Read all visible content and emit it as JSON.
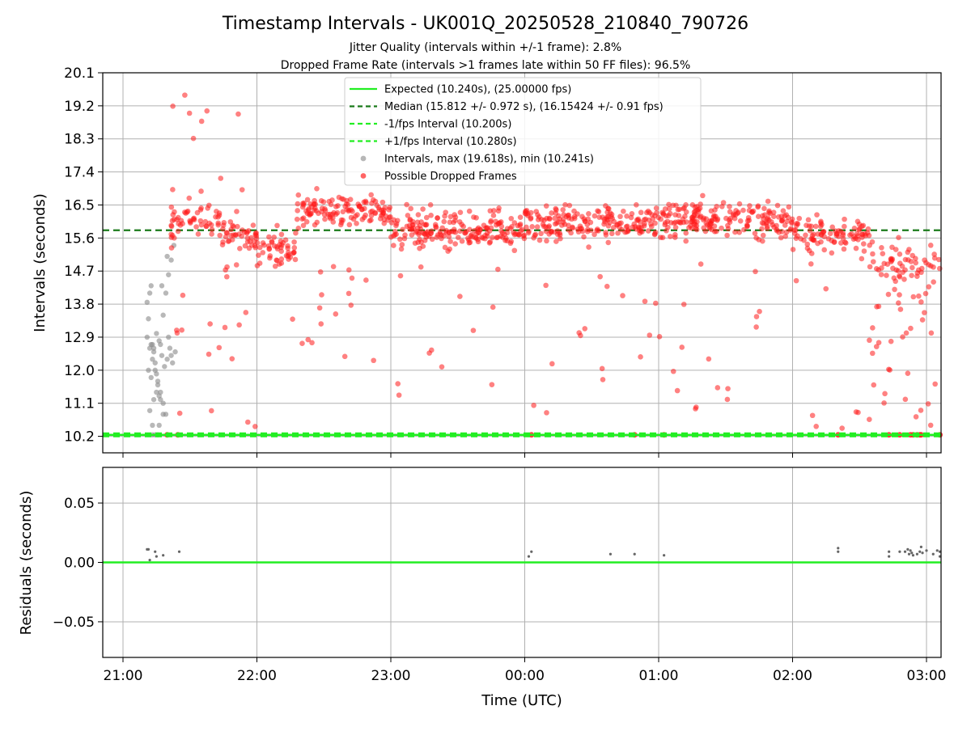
{
  "chart_data": {
    "type": "scatter",
    "title": "Timestamp Intervals - UK001Q_20250528_210840_790726",
    "subtitles": [
      "Jitter Quality (intervals within +/-1 frame): 2.8%",
      "Dropped Frame Rate (intervals >1 frames late within 50 FF files): 96.5%"
    ],
    "xlabel": "Time (UTC)",
    "x_ticks": [
      "21:00",
      "22:00",
      "23:00",
      "00:00",
      "01:00",
      "02:00",
      "03:00"
    ],
    "top_panel": {
      "ylabel": "Intervals (seconds)",
      "y_ticks": [
        "10.2",
        "11.1",
        "12.0",
        "12.9",
        "13.8",
        "14.7",
        "15.6",
        "16.5",
        "17.4",
        "18.3",
        "19.2",
        "20.1"
      ],
      "ylim": [
        9.75,
        20.1
      ],
      "grid": true,
      "legend_placement": "top-center",
      "legend": [
        {
          "label": "Expected (10.240s), (25.00000 fps)",
          "style": "solid",
          "color": "#22ee22"
        },
        {
          "label": "Median (15.812 +/- 0.972 s), (16.15424 +/- 0.91 fps)",
          "style": "dashed",
          "color": "#1a7a1a"
        },
        {
          "label": "-1/fps Interval (10.200s)",
          "style": "dashed",
          "color": "#22ee22"
        },
        {
          "label": "+1/fps Interval (10.280s)",
          "style": "dashed",
          "color": "#22ee22"
        },
        {
          "label": "Intervals, max (19.618s), min (10.241s)",
          "style": "marker",
          "color": "#999999"
        },
        {
          "label": "Possible Dropped Frames",
          "style": "marker",
          "color": "#ff2222"
        }
      ],
      "reference_lines": {
        "expected": 10.24,
        "median": 15.812,
        "minus_fps": 10.2,
        "plus_fps": 10.28
      },
      "gray_points": [
        [
          21.18,
          13.85
        ],
        [
          21.19,
          13.4
        ],
        [
          21.2,
          14.1
        ],
        [
          21.21,
          14.3
        ],
        [
          21.22,
          12.7
        ],
        [
          21.23,
          12.5
        ],
        [
          21.24,
          12.2
        ],
        [
          21.25,
          11.9
        ],
        [
          21.26,
          11.6
        ],
        [
          21.27,
          11.3
        ],
        [
          21.18,
          12.9
        ],
        [
          21.2,
          12.6
        ],
        [
          21.22,
          12.3
        ],
        [
          21.24,
          12.0
        ],
        [
          21.26,
          11.7
        ],
        [
          21.28,
          11.4
        ],
        [
          21.3,
          11.1
        ],
        [
          21.32,
          10.8
        ],
        [
          21.19,
          12.0
        ],
        [
          21.21,
          11.8
        ],
        [
          21.23,
          12.6
        ],
        [
          21.25,
          13.0
        ],
        [
          21.27,
          12.8
        ],
        [
          21.29,
          12.4
        ],
        [
          21.31,
          12.1
        ],
        [
          21.33,
          12.3
        ],
        [
          21.35,
          12.6
        ],
        [
          21.37,
          12.2
        ],
        [
          21.39,
          12.5
        ],
        [
          21.2,
          10.9
        ],
        [
          21.22,
          10.5
        ],
        [
          21.24,
          10.24
        ],
        [
          21.26,
          10.24
        ],
        [
          21.28,
          11.2
        ],
        [
          21.3,
          10.8
        ],
        [
          21.32,
          14.1
        ],
        [
          21.34,
          14.6
        ],
        [
          21.36,
          15.0
        ],
        [
          21.38,
          15.4
        ],
        [
          21.3,
          13.5
        ],
        [
          21.28,
          12.7
        ],
        [
          21.25,
          11.4
        ],
        [
          21.22,
          10.24
        ],
        [
          21.34,
          12.9
        ],
        [
          21.36,
          12.4
        ],
        [
          21.23,
          11.2
        ],
        [
          21.21,
          12.7
        ],
        [
          21.27,
          10.5
        ],
        [
          21.29,
          14.3
        ],
        [
          21.33,
          15.1
        ]
      ],
      "red_scatter_seed": 7,
      "red_points_sample_note_exclude": true
    },
    "bottom_panel": {
      "ylabel": "Residuals (seconds)",
      "y_ticks": [
        "−0.05",
        "0.00",
        "0.05"
      ],
      "ylim": [
        -0.08,
        0.08
      ],
      "zero_line_color": "#22ee22",
      "points": [
        [
          21.18,
          0.011
        ],
        [
          21.19,
          0.011
        ],
        [
          21.2,
          0.002
        ],
        [
          21.24,
          0.009
        ],
        [
          21.25,
          0.005
        ],
        [
          21.3,
          0.006
        ],
        [
          21.42,
          0.009
        ],
        [
          0.03,
          0.005
        ],
        [
          0.05,
          0.009
        ],
        [
          0.64,
          0.007
        ],
        [
          0.82,
          0.007
        ],
        [
          1.04,
          0.006
        ],
        [
          2.34,
          0.012
        ],
        [
          2.34,
          0.009
        ],
        [
          2.72,
          0.009
        ],
        [
          2.72,
          0.005
        ],
        [
          2.8,
          0.009
        ],
        [
          2.84,
          0.009
        ],
        [
          2.86,
          0.011
        ],
        [
          2.87,
          0.007
        ],
        [
          2.88,
          0.01
        ],
        [
          2.89,
          0.008
        ],
        [
          2.9,
          0.006
        ],
        [
          2.93,
          0.007
        ],
        [
          2.95,
          0.009
        ],
        [
          2.96,
          0.013
        ],
        [
          2.97,
          0.008
        ],
        [
          3.0,
          0.01
        ],
        [
          3.05,
          0.007
        ],
        [
          3.08,
          0.01
        ],
        [
          3.1,
          0.005
        ],
        [
          3.1,
          0.009
        ]
      ]
    }
  }
}
